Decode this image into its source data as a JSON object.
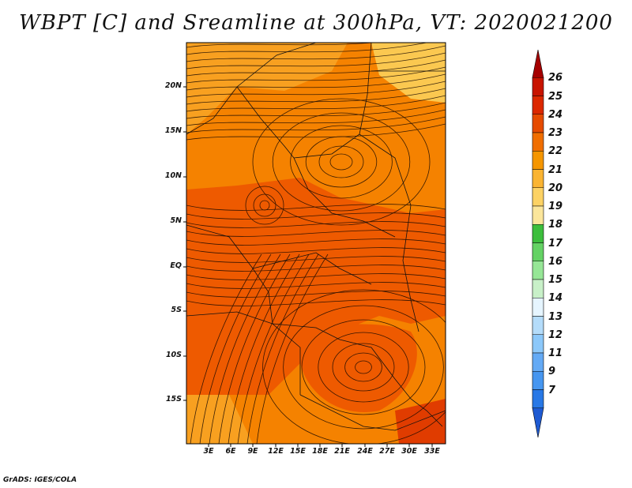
{
  "title": "WBPT [C] and Sreamline at 300hPa, VT: 2020021200",
  "credit": "GrADS: IGES/COLA",
  "lat_labels": [
    "20N",
    "15N",
    "10N",
    "5N",
    "EQ",
    "5S",
    "10S",
    "15S"
  ],
  "lon_labels": [
    "3E",
    "6E",
    "9E",
    "12E",
    "15E",
    "18E",
    "21E",
    "24E",
    "27E",
    "30E",
    "33E"
  ],
  "colorbar": {
    "labels": [
      "26",
      "25",
      "24",
      "23",
      "22",
      "21",
      "20",
      "19",
      "18",
      "17",
      "16",
      "15",
      "14",
      "13",
      "12",
      "11",
      "9",
      "7"
    ],
    "colors": [
      "#a50000",
      "#c81400",
      "#dc2800",
      "#e64b00",
      "#f06e00",
      "#f59600",
      "#fab432",
      "#fcd264",
      "#fbe69b",
      "#3cbe3c",
      "#64d264",
      "#96e696",
      "#c8f0c8",
      "#e6f5ff",
      "#b4dcfa",
      "#8cc8fa",
      "#64aaf5",
      "#4696f0",
      "#2878e6",
      "#1e5ad2"
    ]
  },
  "map": {
    "fill_colors": {
      "deep_red": "#e03c00",
      "orange_red": "#ee5a00",
      "orange": "#f58200",
      "light_orange": "#f8a020",
      "pale": "#fbc850"
    }
  }
}
